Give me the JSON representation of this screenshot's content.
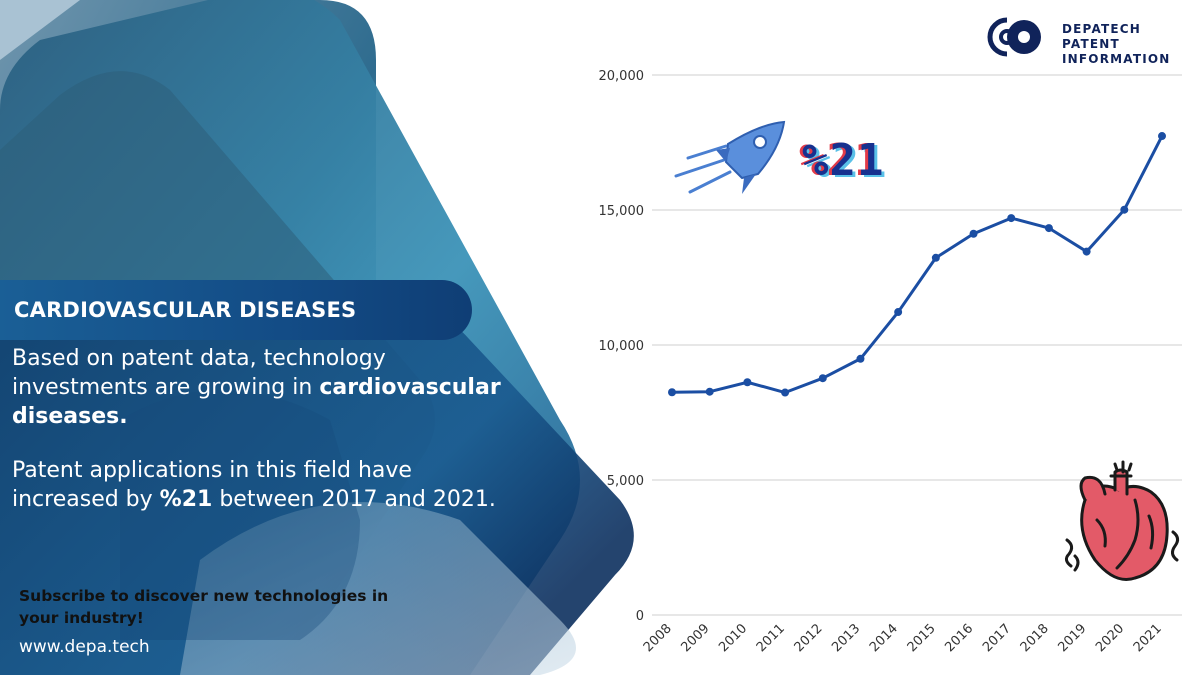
{
  "brand": {
    "line1": "DEPATECH PATENT",
    "line2": "INFORMATION",
    "colors": {
      "navy": "#10235a",
      "accent_blue": "#1b4ea3",
      "panel_dark": "#0e3a6e",
      "panel_light": "#3e8cb8"
    }
  },
  "banner": {
    "title": "CARDIOVASCULAR DISEASES"
  },
  "body": {
    "p1_lead": "Based on patent data, technology investments are growing in ",
    "p1_bold": "cardiovascular diseases.",
    "p2_lead": "Patent applications in this field have increased by ",
    "p2_bold": "%21",
    "p2_tail": " between 2017 and 2021."
  },
  "cta": {
    "text": "Subscribe to discover new technologies in your industry!",
    "url": "www.depa.tech"
  },
  "badge": {
    "text": "%21"
  },
  "icons": {
    "rocket": "rocket-icon",
    "heart": "heart-icon",
    "logo": "depatech-logo-icon"
  },
  "chart_data": {
    "type": "line",
    "categories": [
      "2008",
      "2009",
      "2010",
      "2011",
      "2012",
      "2013",
      "2014",
      "2015",
      "2016",
      "2017",
      "2018",
      "2019",
      "2020",
      "2021"
    ],
    "series": [
      {
        "values": [
          8250,
          8270,
          8620,
          8240,
          8770,
          9490,
          11220,
          13230,
          14120,
          14700,
          14330,
          13460,
          15010,
          17740
        ]
      }
    ],
    "ylim": [
      0,
      20000
    ],
    "yticks": [
      0,
      5000,
      10000,
      15000,
      20000
    ],
    "ytick_labels": [
      "0",
      "5,000",
      "10,000",
      "15,000",
      "20,000"
    ],
    "grid": "horizontal",
    "line_color": "#1b4ea3",
    "title": "",
    "xlabel": "",
    "ylabel": ""
  }
}
